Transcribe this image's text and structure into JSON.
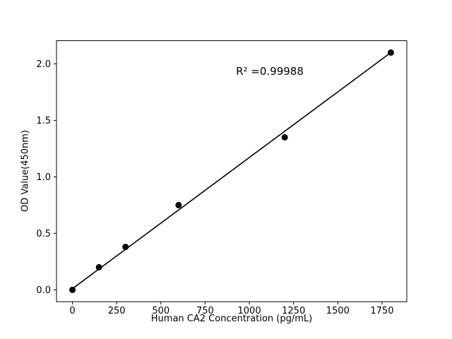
{
  "chart_data": {
    "type": "scatter",
    "title": "",
    "xlabel": "Human CA2 Concentration (pg/mL)",
    "ylabel": "OD Value(450nm)",
    "annotation": "R² =0.99988",
    "x": [
      0,
      150,
      300,
      600,
      1200,
      1800
    ],
    "y": [
      0.0,
      0.2,
      0.38,
      0.75,
      1.35,
      2.1
    ],
    "fit_line": {
      "x": [
        0,
        1800
      ],
      "y": [
        0.01,
        2.1
      ]
    },
    "xlim": [
      -90,
      1890
    ],
    "ylim": [
      -0.105,
      2.205
    ],
    "xticks": [
      0,
      250,
      500,
      750,
      1000,
      1250,
      1500,
      1750
    ],
    "xtick_labels": [
      "0",
      "250",
      "500",
      "750",
      "1000",
      "1250",
      "1500",
      "1750"
    ],
    "yticks": [
      0.0,
      0.5,
      1.0,
      1.5,
      2.0
    ],
    "ytick_labels": [
      "0.0",
      "0.5",
      "1.0",
      "1.5",
      "2.0"
    ],
    "grid": false,
    "legend": null,
    "marker_color": "#000000",
    "line_color": "#000000",
    "background": "#ffffff"
  }
}
